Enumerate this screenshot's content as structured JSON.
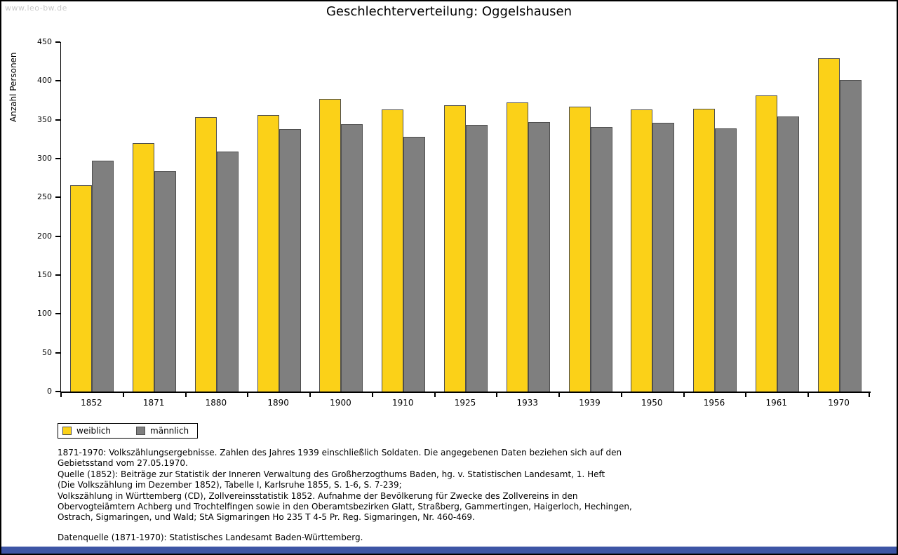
{
  "watermark": "www.leo-bw.de",
  "title": "Geschlechterverteilung: Oggelshausen",
  "chart_data": {
    "type": "bar",
    "title": "Geschlechterverteilung: Oggelshausen",
    "xlabel": "",
    "ylabel": "Anzahl Personen",
    "ylim": [
      0,
      450
    ],
    "yticks": [
      0,
      50,
      100,
      150,
      200,
      250,
      300,
      350,
      400,
      450
    ],
    "grid": false,
    "legend_position": "bottom-left",
    "categories": [
      "1852",
      "1871",
      "1880",
      "1890",
      "1900",
      "1910",
      "1925",
      "1933",
      "1939",
      "1950",
      "1956",
      "1961",
      "1970"
    ],
    "series": [
      {
        "name": "weiblich",
        "color": "#fbd118",
        "values": [
          266,
          320,
          353,
          356,
          377,
          363,
          369,
          372,
          367,
          363,
          364,
          381,
          429
        ]
      },
      {
        "name": "männlich",
        "color": "#7f7f7f",
        "values": [
          297,
          284,
          309,
          338,
          344,
          328,
          343,
          347,
          341,
          346,
          339,
          354,
          401
        ]
      }
    ]
  },
  "colors": {
    "female": "#fbd118",
    "male": "#7f7f7f",
    "footer_bar": "#3d55a5",
    "watermark": "#c9c9c9"
  },
  "notes": {
    "lines": [
      "1871-1970: Volkszählungsergebnisse. Zahlen des Jahres 1939 einschließlich Soldaten. Die angegebenen Daten beziehen sich auf den",
      "Gebietsstand vom 27.05.1970.",
      "Quelle (1852): Beiträge zur Statistik der Inneren Verwaltung des Großherzogthums Baden, hg. v. Statistischen Landesamt, 1. Heft",
      "(Die Volkszählung im Dezember 1852), Tabelle I, Karlsruhe 1855, S. 1-6, S. 7-239;",
      "Volkszählung in Württemberg (CD), Zollvereinsstatistik 1852. Aufnahme der Bevölkerung für Zwecke des Zollvereins in den",
      "Obervogteiämtern Achberg und Trochtelfingen sowie in den Oberamtsbezirken Glatt, Straßberg, Gammertingen, Haigerloch, Hechingen,",
      "Ostrach, Sigmaringen, und Wald; StA Sigmaringen Ho 235 T 4-5 Pr. Reg. Sigmaringen, Nr. 460-469."
    ],
    "datasource": "Datenquelle (1871-1970): Statistisches Landesamt Baden-Württemberg."
  }
}
